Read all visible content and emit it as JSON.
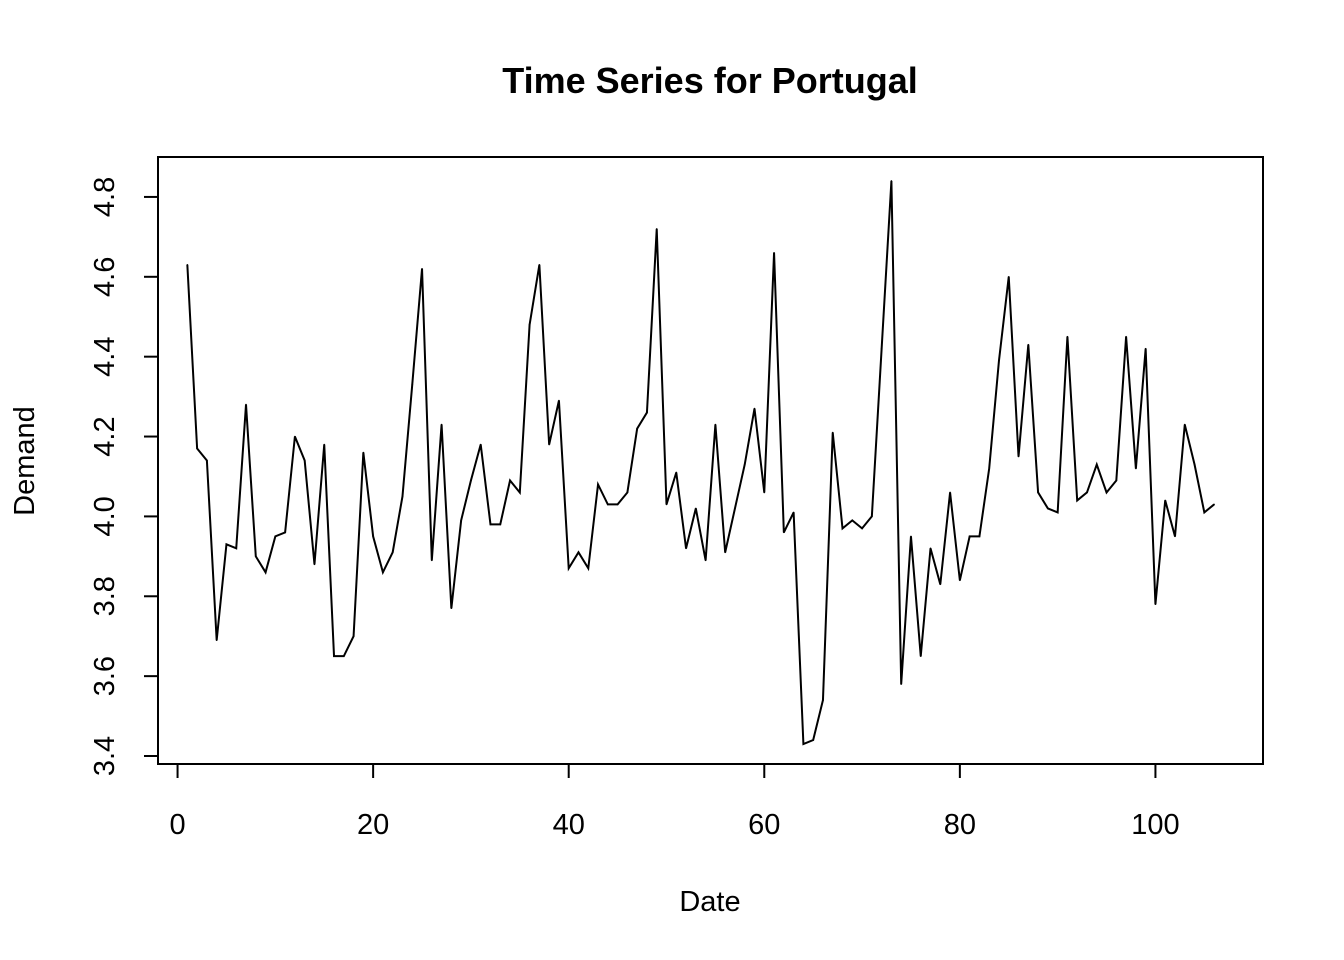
{
  "chart_data": {
    "type": "line",
    "title": "Time Series for Portugal",
    "xlabel": "Date",
    "ylabel": "Demand",
    "xlim": [
      -2,
      111
    ],
    "ylim": [
      3.38,
      4.9
    ],
    "x_ticks": [
      0,
      20,
      40,
      60,
      80,
      100
    ],
    "x_tick_labels": [
      "0",
      "20",
      "40",
      "60",
      "80",
      "100"
    ],
    "y_ticks": [
      3.4,
      3.6,
      3.8,
      4.0,
      4.2,
      4.4,
      4.6,
      4.8
    ],
    "y_tick_labels": [
      "3.4",
      "3.6",
      "3.8",
      "4.0",
      "4.2",
      "4.4",
      "4.6",
      "4.8"
    ],
    "grid": false,
    "series": [
      {
        "color": "#000000",
        "x": [
          1,
          2,
          3,
          4,
          5,
          6,
          7,
          8,
          9,
          10,
          11,
          12,
          13,
          14,
          15,
          16,
          17,
          18,
          19,
          20,
          21,
          22,
          23,
          24,
          25,
          26,
          27,
          28,
          29,
          30,
          31,
          32,
          33,
          34,
          35,
          36,
          37,
          38,
          39,
          40,
          41,
          42,
          43,
          44,
          45,
          46,
          47,
          48,
          49,
          50,
          51,
          52,
          53,
          54,
          55,
          56,
          57,
          58,
          59,
          60,
          61,
          62,
          63,
          64,
          65,
          66,
          67,
          68,
          69,
          70,
          71,
          72,
          73,
          74,
          75,
          76,
          77,
          78,
          79,
          80,
          81,
          82,
          83,
          84,
          85,
          86,
          87,
          88,
          89,
          90,
          91,
          92,
          93,
          94,
          95,
          96,
          97,
          98,
          99,
          100,
          101,
          102,
          103,
          104,
          105,
          106
        ],
        "values": [
          4.63,
          4.17,
          4.14,
          3.69,
          3.93,
          3.92,
          4.28,
          3.9,
          3.86,
          3.95,
          3.96,
          4.2,
          4.14,
          3.88,
          4.18,
          3.65,
          3.65,
          3.7,
          4.16,
          3.95,
          3.86,
          3.91,
          4.05,
          4.33,
          4.62,
          3.89,
          4.23,
          3.77,
          3.99,
          4.09,
          4.18,
          3.98,
          3.98,
          4.09,
          4.06,
          4.48,
          4.63,
          4.18,
          4.29,
          3.87,
          3.91,
          3.87,
          4.08,
          4.03,
          4.03,
          4.06,
          4.22,
          4.26,
          4.72,
          4.03,
          4.11,
          3.92,
          4.02,
          3.89,
          4.23,
          3.91,
          4.02,
          4.13,
          4.27,
          4.06,
          4.66,
          3.96,
          4.01,
          3.43,
          3.44,
          3.54,
          4.21,
          3.97,
          3.99,
          3.97,
          4.0,
          4.42,
          4.84,
          3.58,
          3.95,
          3.65,
          3.92,
          3.83,
          4.06,
          3.84,
          3.95,
          3.95,
          4.12,
          4.39,
          4.6,
          4.15,
          4.43,
          4.06,
          4.02,
          4.01,
          4.45,
          4.04,
          4.06,
          4.13,
          4.06,
          4.09,
          4.45,
          4.12,
          4.42,
          3.78,
          4.04,
          3.95,
          4.23,
          4.13,
          4.01,
          4.03
        ]
      }
    ]
  }
}
